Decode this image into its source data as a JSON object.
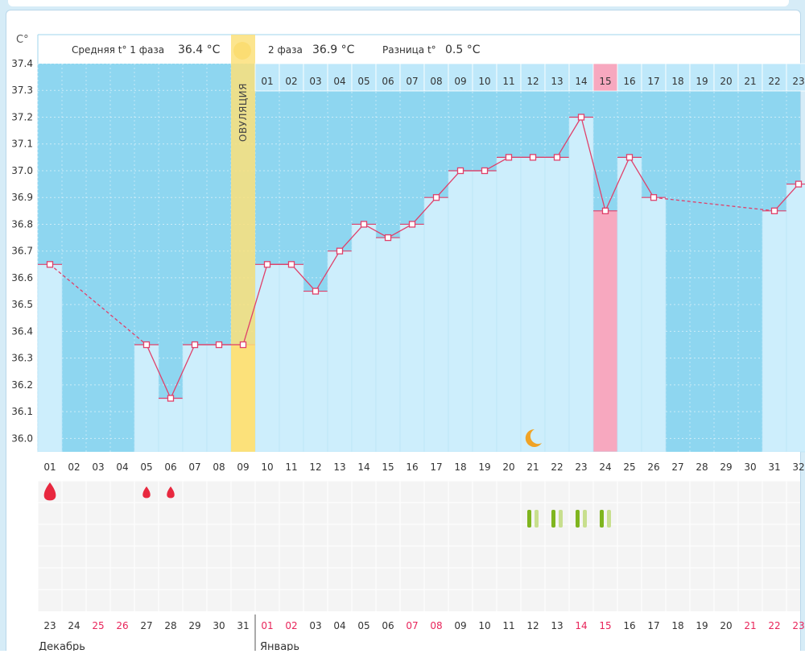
{
  "header": {
    "unit": "C°",
    "phase1_label": "Средняя t° 1 фаза",
    "phase1_value": "36.4 °C",
    "phase2_label": "2 фаза",
    "phase2_value": "36.9 °C",
    "diff_label": "Разница t°",
    "diff_value": "0.5 °C",
    "ovulation_label": "ОВУЛЯЦИЯ"
  },
  "months": {
    "first": "Декабрь",
    "second": "Январь"
  },
  "colors": {
    "background": "#8ed6f0",
    "bar_fill": "#cdeefc",
    "line": "#e0406a",
    "ovulation": "#fbe07a",
    "highlight": "#f7a8bf",
    "weekend": "#e8245a"
  },
  "chart_data": {
    "type": "line",
    "y_ticks": [
      "37.4",
      "37.3",
      "37.2",
      "37.1",
      "37.0",
      "36.9",
      "36.8",
      "36.7",
      "36.6",
      "36.5",
      "36.4",
      "36.3",
      "36.2",
      "36.1",
      "36.0"
    ],
    "ylim": [
      35.95,
      37.4
    ],
    "cycle_days": [
      "01",
      "02",
      "03",
      "04",
      "05",
      "06",
      "07",
      "08",
      "09",
      "10",
      "11",
      "12",
      "13",
      "14",
      "15",
      "16",
      "17",
      "18",
      "19",
      "20",
      "21",
      "22",
      "23",
      "24",
      "25",
      "26",
      "27",
      "28",
      "29",
      "30",
      "31",
      "32"
    ],
    "post_ovulation_days": [
      "01",
      "02",
      "03",
      "04",
      "05",
      "06",
      "07",
      "08",
      "09",
      "10",
      "11",
      "12",
      "13",
      "14",
      "15",
      "16",
      "17",
      "18",
      "19",
      "20",
      "21",
      "22",
      "23"
    ],
    "dates": [
      "23",
      "24",
      "25",
      "26",
      "27",
      "28",
      "29",
      "30",
      "31",
      "01",
      "02",
      "03",
      "04",
      "05",
      "06",
      "07",
      "08",
      "09",
      "10",
      "11",
      "12",
      "13",
      "14",
      "15",
      "16",
      "17",
      "18",
      "19",
      "20",
      "21",
      "22",
      "23"
    ],
    "weekend_dates": [
      2,
      3,
      9,
      10,
      15,
      16,
      22,
      23,
      29,
      30,
      31
    ],
    "temperatures": [
      36.65,
      null,
      null,
      null,
      36.35,
      36.15,
      36.35,
      36.35,
      36.35,
      36.65,
      36.65,
      36.55,
      36.7,
      36.8,
      36.75,
      36.8,
      36.9,
      37.0,
      37.0,
      37.05,
      37.05,
      37.05,
      37.2,
      36.85,
      37.05,
      36.9,
      null,
      null,
      null,
      null,
      36.85,
      36.95
    ],
    "ovulation_day": 9,
    "highlighted_day": 24,
    "period_days": [
      1,
      5,
      6
    ],
    "moon_day": 21,
    "bar_marks_days": [
      21,
      22,
      23,
      24
    ]
  }
}
